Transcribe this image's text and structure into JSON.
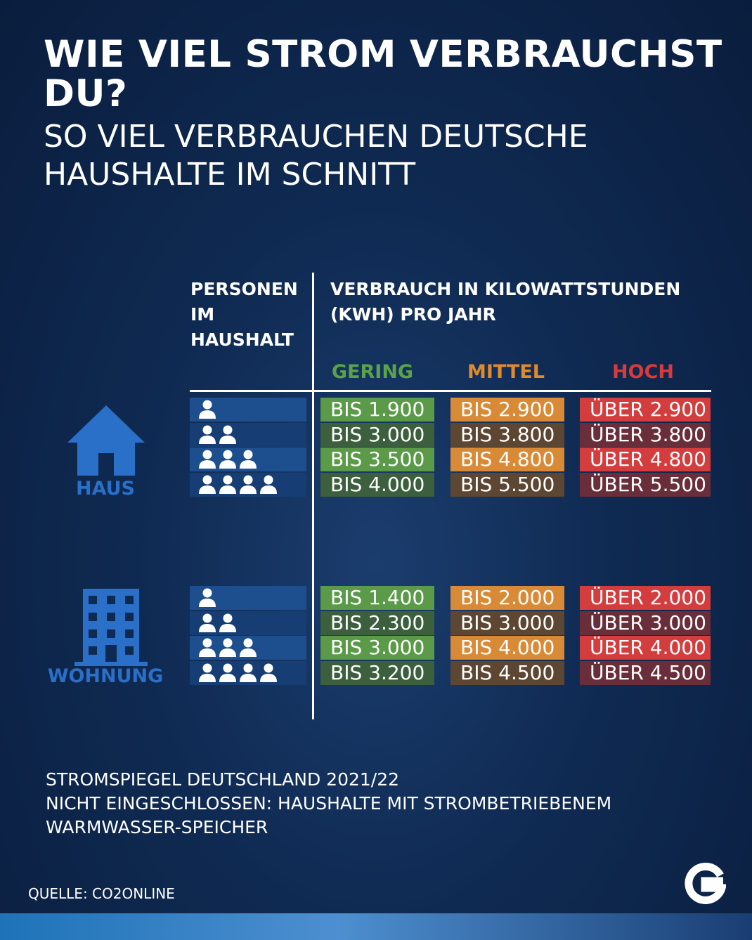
{
  "title": "WIE VIEL STROM VERBRAUCHST DU?",
  "subtitle": "SO VIEL VERBRAUCHEN DEUTSCHE HAUSHALTE IM SCHNITT",
  "headers": {
    "persons": "PERSONEN IM HAUSHALT",
    "consumption": "VERBRAUCH IN KILOWATTSTUNDEN (KWH) PRO JAHR"
  },
  "categories": {
    "low": "GERING",
    "mid": "MITTEL",
    "high": "HOCH"
  },
  "colors": {
    "low_a": "#5a9a48",
    "low_b": "#3c5f3e",
    "mid_a": "#d98a36",
    "mid_b": "#5d4732",
    "high_a": "#d43d3d",
    "high_b": "#6a2e3a",
    "accent": "#2a6fc8"
  },
  "chart_data": {
    "type": "table",
    "title": "WIE VIEL STROM VERBRAUCHST DU?",
    "subtitle": "SO VIEL VERBRAUCHEN DEUTSCHE HAUSHALTE IM SCHNITT",
    "columns": [
      "PERSONEN IM HAUSHALT",
      "GERING",
      "MITTEL",
      "HOCH"
    ],
    "groups": [
      {
        "name": "HAUS",
        "rows": [
          {
            "persons": 1,
            "low": "BIS 1.900",
            "mid": "BIS 2.900",
            "high": "ÜBER 2.900"
          },
          {
            "persons": 2,
            "low": "BIS 3.000",
            "mid": "BIS 3.800",
            "high": "ÜBER 3.800"
          },
          {
            "persons": 3,
            "low": "BIS 3.500",
            "mid": "BIS 4.800",
            "high": "ÜBER 4.800"
          },
          {
            "persons": 4,
            "low": "BIS 4.000",
            "mid": "BIS 5.500",
            "high": "ÜBER 5.500"
          }
        ]
      },
      {
        "name": "WOHNUNG",
        "rows": [
          {
            "persons": 1,
            "low": "BIS 1.400",
            "mid": "BIS 2.000",
            "high": "ÜBER 2.000"
          },
          {
            "persons": 2,
            "low": "BIS 2.300",
            "mid": "BIS 3.000",
            "high": "ÜBER 3.000"
          },
          {
            "persons": 3,
            "low": "BIS 3.000",
            "mid": "BIS 4.000",
            "high": "ÜBER 4.000"
          },
          {
            "persons": 4,
            "low": "BIS 3.200",
            "mid": "BIS 4.500",
            "high": "ÜBER 4.500"
          }
        ]
      }
    ]
  },
  "footnote": {
    "line1": "STROMSPIEGEL DEUTSCHLAND 2021/22",
    "line2": "NICHT EINGESCHLOSSEN: HAUSHALTE MIT STROMBETRIEBENEM",
    "line3": "WARMWASSER-SPEICHER"
  },
  "source": "QUELLE: CO2ONLINE"
}
